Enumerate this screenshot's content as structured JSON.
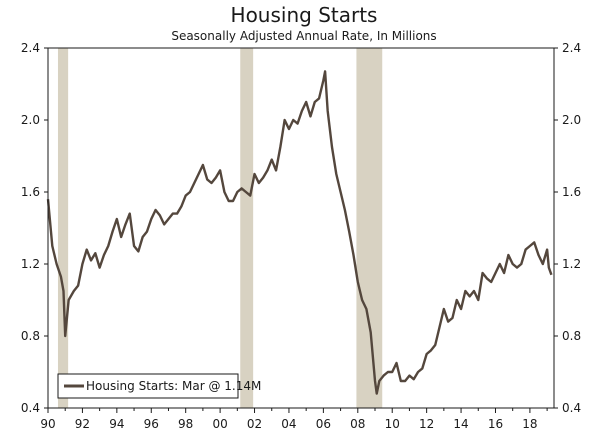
{
  "chart_data": {
    "type": "line",
    "title": "Housing Starts",
    "subtitle": "Seasonally Adjusted Annual Rate, In Millions",
    "xlabel": "",
    "ylabel": "",
    "xlim": [
      1990.0,
      2019.4
    ],
    "ylim": [
      0.4,
      2.4
    ],
    "y_ticks": [
      0.4,
      0.8,
      1.2,
      1.6,
      2.0,
      2.4
    ],
    "y_tick_labels": [
      "0.4",
      "0.8",
      "1.2",
      "1.6",
      "2.0",
      "2.4"
    ],
    "x_ticks": [
      1990,
      1992,
      1994,
      1996,
      1998,
      2000,
      2002,
      2004,
      2006,
      2008,
      2010,
      2012,
      2014,
      2016,
      2018
    ],
    "x_tick_labels": [
      "90",
      "92",
      "94",
      "96",
      "98",
      "00",
      "02",
      "04",
      "06",
      "08",
      "10",
      "12",
      "14",
      "16",
      "18"
    ],
    "recessions": [
      [
        1990.58,
        1991.17
      ],
      [
        2001.17,
        2001.92
      ],
      [
        2007.92,
        2009.42
      ]
    ],
    "legend": {
      "label": "Housing Starts: Mar @ 1.14M",
      "placement": "bottom-left"
    },
    "colors": {
      "line": "#54473d",
      "recession": "#d8d2c2",
      "axis": "#1a1a1a"
    },
    "series": [
      {
        "name": "Housing Starts",
        "x": [
          1990.0,
          1990.25,
          1990.5,
          1990.75,
          1990.9,
          1991.0,
          1991.2,
          1991.5,
          1991.75,
          1992.0,
          1992.25,
          1992.5,
          1992.75,
          1993.0,
          1993.25,
          1993.5,
          1993.75,
          1994.0,
          1994.25,
          1994.5,
          1994.75,
          1995.0,
          1995.25,
          1995.5,
          1995.75,
          1996.0,
          1996.25,
          1996.5,
          1996.75,
          1997.0,
          1997.25,
          1997.5,
          1997.75,
          1998.0,
          1998.25,
          1998.5,
          1998.75,
          1999.0,
          1999.25,
          1999.5,
          1999.75,
          2000.0,
          2000.25,
          2000.5,
          2000.75,
          2001.0,
          2001.25,
          2001.5,
          2001.75,
          2002.0,
          2002.25,
          2002.5,
          2002.75,
          2003.0,
          2003.25,
          2003.5,
          2003.75,
          2004.0,
          2004.25,
          2004.5,
          2004.75,
          2005.0,
          2005.25,
          2005.5,
          2005.75,
          2006.0,
          2006.1,
          2006.25,
          2006.5,
          2006.75,
          2007.0,
          2007.25,
          2007.5,
          2007.75,
          2008.0,
          2008.25,
          2008.5,
          2008.75,
          2009.0,
          2009.1,
          2009.25,
          2009.5,
          2009.75,
          2010.0,
          2010.25,
          2010.5,
          2010.75,
          2011.0,
          2011.25,
          2011.5,
          2011.75,
          2012.0,
          2012.25,
          2012.5,
          2012.75,
          2013.0,
          2013.25,
          2013.5,
          2013.75,
          2014.0,
          2014.25,
          2014.5,
          2014.75,
          2015.0,
          2015.25,
          2015.5,
          2015.75,
          2016.0,
          2016.25,
          2016.5,
          2016.75,
          2017.0,
          2017.25,
          2017.5,
          2017.75,
          2018.0,
          2018.25,
          2018.5,
          2018.75,
          2019.0,
          2019.1,
          2019.25
        ],
        "values": [
          1.56,
          1.3,
          1.2,
          1.13,
          1.05,
          0.8,
          1.0,
          1.05,
          1.08,
          1.2,
          1.28,
          1.22,
          1.26,
          1.18,
          1.25,
          1.3,
          1.38,
          1.45,
          1.35,
          1.42,
          1.48,
          1.3,
          1.27,
          1.35,
          1.38,
          1.45,
          1.5,
          1.47,
          1.42,
          1.45,
          1.48,
          1.48,
          1.52,
          1.58,
          1.6,
          1.65,
          1.7,
          1.75,
          1.67,
          1.65,
          1.68,
          1.72,
          1.6,
          1.55,
          1.55,
          1.6,
          1.62,
          1.6,
          1.58,
          1.7,
          1.65,
          1.68,
          1.72,
          1.78,
          1.72,
          1.85,
          2.0,
          1.95,
          2.0,
          1.98,
          2.05,
          2.1,
          2.02,
          2.1,
          2.12,
          2.22,
          2.27,
          2.05,
          1.85,
          1.7,
          1.6,
          1.5,
          1.38,
          1.25,
          1.1,
          1.0,
          0.95,
          0.82,
          0.55,
          0.48,
          0.55,
          0.58,
          0.6,
          0.6,
          0.65,
          0.55,
          0.55,
          0.58,
          0.56,
          0.6,
          0.62,
          0.7,
          0.72,
          0.75,
          0.85,
          0.95,
          0.88,
          0.9,
          1.0,
          0.95,
          1.05,
          1.02,
          1.05,
          1.0,
          1.15,
          1.12,
          1.1,
          1.15,
          1.2,
          1.15,
          1.25,
          1.2,
          1.18,
          1.2,
          1.28,
          1.3,
          1.32,
          1.25,
          1.2,
          1.28,
          1.18,
          1.14
        ]
      }
    ]
  }
}
